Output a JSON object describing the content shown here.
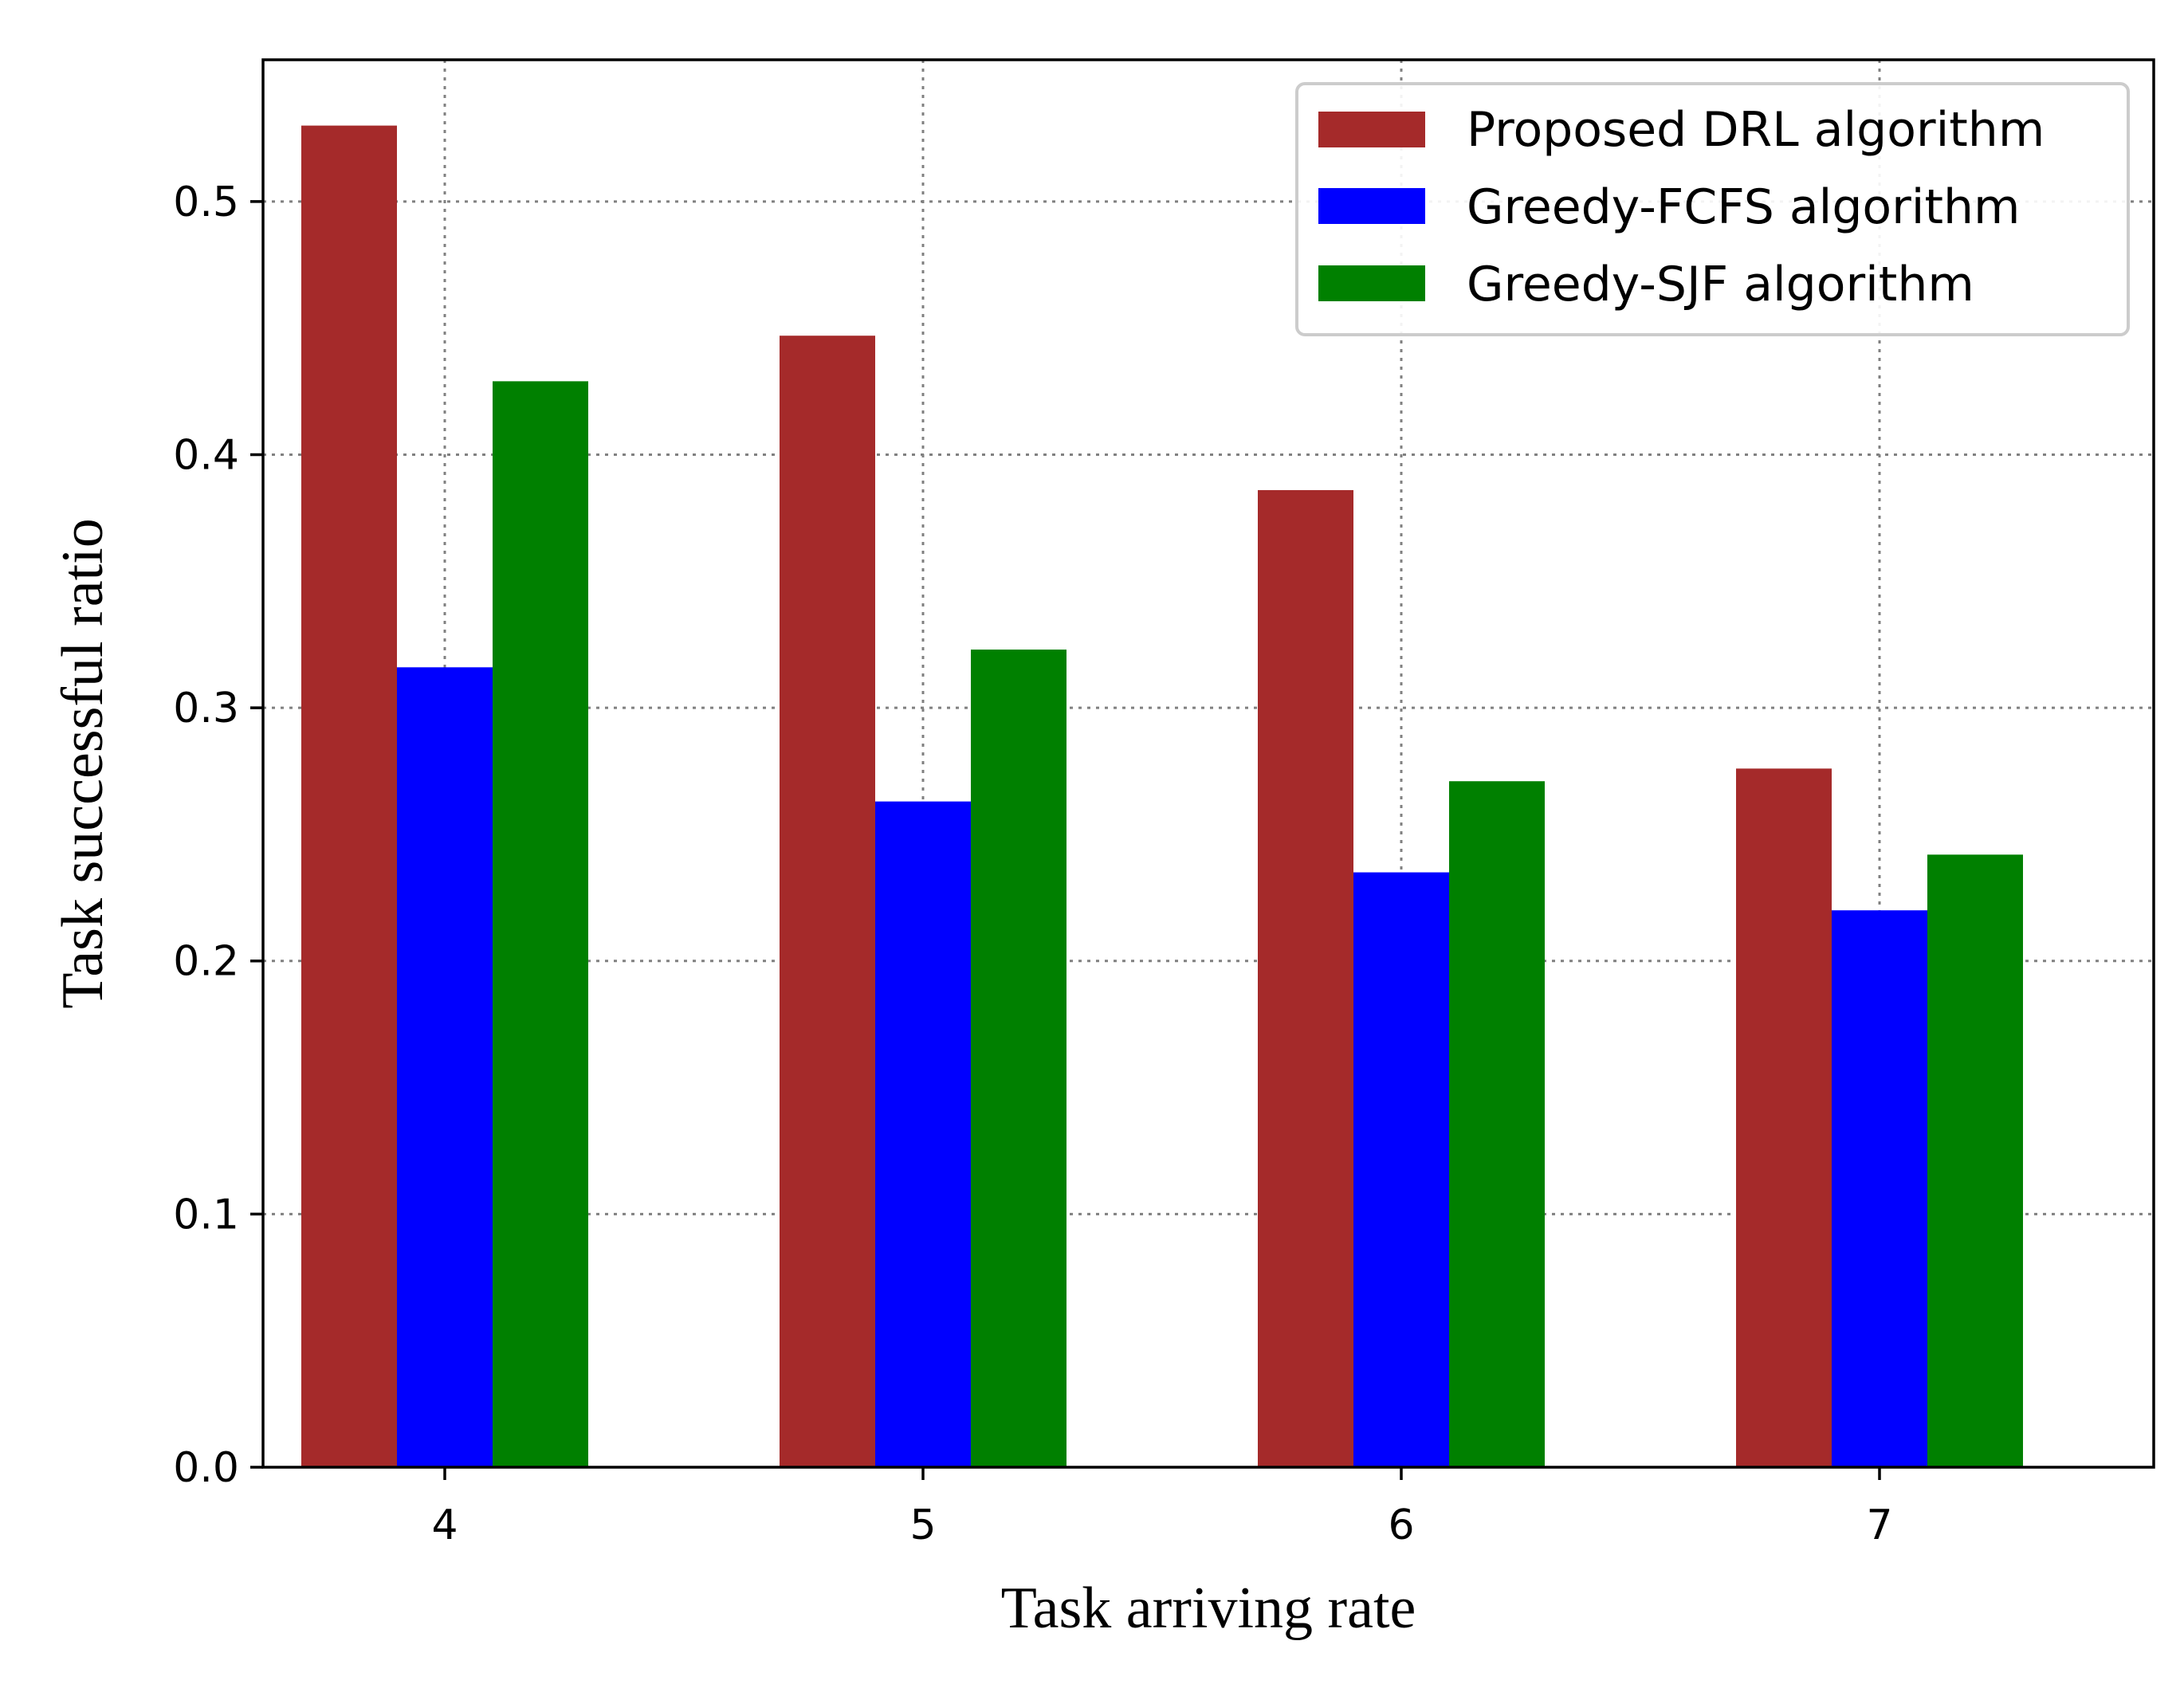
{
  "chart_data": {
    "type": "bar",
    "title": "",
    "xlabel": "Task arriving rate",
    "ylabel": "Task successful ratio",
    "categories": [
      "4",
      "5",
      "6",
      "7"
    ],
    "ylim": [
      0,
      0.556
    ],
    "yticks": [
      0.0,
      0.1,
      0.2,
      0.3,
      0.4,
      0.5
    ],
    "ytick_labels": [
      "0.0",
      "0.1",
      "0.2",
      "0.3",
      "0.4",
      "0.5"
    ],
    "grid": true,
    "legend_position": "top-right",
    "series": [
      {
        "name": "Proposed DRL algorithm",
        "color": "#a52a2a",
        "values": [
          0.53,
          0.447,
          0.386,
          0.276
        ]
      },
      {
        "name": "Greedy-FCFS algorithm",
        "color": "#0000ff",
        "values": [
          0.316,
          0.263,
          0.235,
          0.22
        ]
      },
      {
        "name": "Greedy-SJF algorithm",
        "color": "#008000",
        "values": [
          0.429,
          0.323,
          0.271,
          0.242
        ]
      }
    ]
  }
}
